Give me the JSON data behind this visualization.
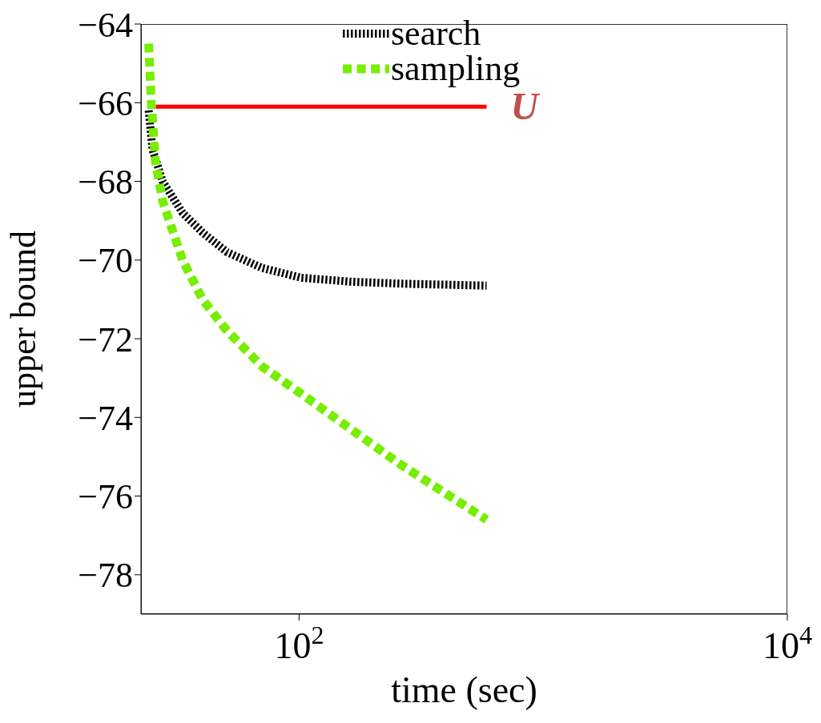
{
  "chart_data": {
    "type": "line",
    "xlabel": "time (sec)",
    "ylabel": "upper bound",
    "log": "x",
    "xlim": [
      22.5,
      10000
    ],
    "xticks": [
      {
        "value": 100,
        "label": "10$^{2}$"
      },
      {
        "value": 10000,
        "label": "10$^{4}$"
      }
    ],
    "ylim": [
      -79,
      -64
    ],
    "yticks": [
      -78,
      -76,
      -74,
      -72,
      -70,
      -68,
      -66,
      -64
    ],
    "grid": false,
    "legend": "top",
    "marker": "none",
    "series": [
      {
        "name": "search",
        "color": "#000000",
        "line_style": "dotted",
        "x": [
          24.2,
          25.1,
          27.6,
          33.3,
          40.2,
          50.7,
          70.4,
          102,
          163,
          261,
          586
        ],
        "values": [
          -66.2,
          -67.2,
          -68.0,
          -68.8,
          -69.3,
          -69.8,
          -70.2,
          -70.45,
          -70.55,
          -70.6,
          -70.65
        ]
      },
      {
        "name": "sampling",
        "color": "#77ee00",
        "line_style": "dashed",
        "x": [
          24.2,
          24.8,
          25.8,
          27.6,
          33.3,
          40.2,
          50.7,
          70.4,
          102,
          163,
          261,
          586
        ],
        "values": [
          -64.5,
          -66,
          -67.5,
          -68.5,
          -70,
          -71,
          -71.8,
          -72.7,
          -73.4,
          -74.3,
          -75.2,
          -76.6
        ]
      }
    ],
    "ref_lines": [
      {
        "axis": "y",
        "value": -66.1,
        "label": "U",
        "color": "#ff0000",
        "line_style": "solid"
      }
    ]
  }
}
